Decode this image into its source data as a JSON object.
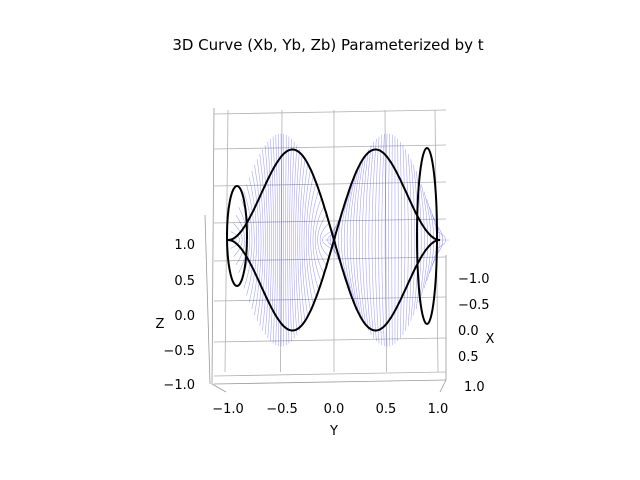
{
  "chart_data": {
    "type": "line",
    "projection": "3d",
    "title": "3D Curve (Xb, Yb, Zb) Parameterized by t",
    "xlabel": "X",
    "ylabel": "Y",
    "zlabel": "Z",
    "xlim": [
      -1,
      1
    ],
    "ylim": [
      -1,
      1
    ],
    "zlim": [
      -1,
      1
    ],
    "x_ticks": [
      "−1.0",
      "−0.5",
      "0.0",
      "0.5",
      "1.0"
    ],
    "y_ticks": [
      "−1.0",
      "−0.5",
      "0.0",
      "0.5",
      "1.0"
    ],
    "z_ticks": [
      "−1.0",
      "−0.5",
      "0.0",
      "0.5",
      "1.0"
    ],
    "grid": true,
    "series": [
      {
        "style": "curve",
        "color": "#000000",
        "x": [
          0.0,
          0.0,
          0.0,
          0.0,
          0.0,
          0.0,
          0.0,
          0.0,
          0.0,
          0.0,
          0.0
        ],
        "y": [
          -1.0,
          -0.95,
          -0.8,
          -0.6,
          -0.35,
          0.0,
          0.35,
          0.6,
          0.8,
          0.95,
          1.0
        ],
        "z": [
          0.0,
          0.9,
          0.6,
          -0.4,
          -1.0,
          0.0,
          1.0,
          0.4,
          -0.6,
          -0.9,
          0.0
        ]
      },
      {
        "style": "ruled-lines",
        "color": "#0000ff"
      }
    ]
  }
}
